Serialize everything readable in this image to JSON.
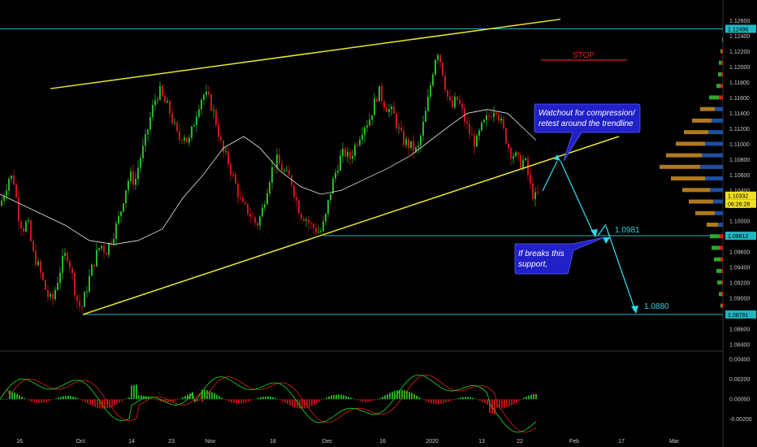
{
  "chart_data": [
    {
      "type": "candlestick",
      "title": "",
      "y_axis_ticks": [
        "1.12600",
        "1.12400",
        "1.12200",
        "1.12000",
        "1.11800",
        "1.11600",
        "1.11400",
        "1.11200",
        "1.11000",
        "1.10800",
        "1.10600",
        "1.10400",
        "1.10200",
        "1.10000",
        "1.09800",
        "1.09600",
        "1.09400",
        "1.09200",
        "1.09000",
        "1.08800",
        "1.08600",
        "1.08400"
      ],
      "ylim": [
        1.084,
        1.1268
      ],
      "x_axis_ticks": [
        "16",
        "Oct",
        "14",
        "23",
        "Nov",
        "18",
        "Dec",
        "16",
        "2020",
        "13",
        "22",
        "Feb",
        "17",
        "Mar"
      ],
      "price_labels": {
        "resistance": "1.12496",
        "current": "1.10332",
        "countdown": "06:26:28",
        "support": "1.09812",
        "target": "1.08791"
      },
      "levels": [
        {
          "label": "1.0981",
          "value": 1.0981
        },
        {
          "label": "1.0880",
          "value": 1.088
        }
      ],
      "stop_label": "STOP",
      "annotations": [
        {
          "line1": "Watchout for compression/",
          "line2": "retest around the trendline"
        },
        {
          "line1": "If breaks this",
          "line2": "support,"
        }
      ],
      "close_path": [
        [
          0,
          1.102
        ],
        [
          6,
          1.104
        ],
        [
          12,
          1.106
        ],
        [
          18,
          1.105
        ],
        [
          22,
          1.101
        ],
        [
          28,
          1.099
        ],
        [
          34,
          1.1
        ],
        [
          40,
          1.096
        ],
        [
          46,
          1.0945
        ],
        [
          52,
          1.0925
        ],
        [
          58,
          1.0905
        ],
        [
          64,
          1.0895
        ],
        [
          70,
          1.092
        ],
        [
          76,
          1.0945
        ],
        [
          82,
          1.096
        ],
        [
          88,
          1.0935
        ],
        [
          94,
          1.09
        ],
        [
          100,
          1.0885
        ],
        [
          106,
          1.091
        ],
        [
          112,
          1.0935
        ],
        [
          118,
          1.0955
        ],
        [
          124,
          1.097
        ],
        [
          130,
          1.096
        ],
        [
          136,
          1.0975
        ],
        [
          142,
          1.099
        ],
        [
          148,
          1.101
        ],
        [
          154,
          1.104
        ],
        [
          160,
          1.106
        ],
        [
          166,
          1.105
        ],
        [
          172,
          1.108
        ],
        [
          178,
          1.11
        ],
        [
          184,
          1.113
        ],
        [
          190,
          1.1155
        ],
        [
          196,
          1.117
        ],
        [
          202,
          1.1155
        ],
        [
          208,
          1.1145
        ],
        [
          214,
          1.1125
        ],
        [
          220,
          1.1105
        ],
        [
          226,
          1.1115
        ],
        [
          232,
          1.11
        ],
        [
          238,
          1.1125
        ],
        [
          244,
          1.115
        ],
        [
          250,
          1.1165
        ],
        [
          256,
          1.116
        ],
        [
          262,
          1.1145
        ],
        [
          268,
          1.112
        ],
        [
          274,
          1.109
        ],
        [
          280,
          1.108
        ],
        [
          286,
          1.106
        ],
        [
          292,
          1.104
        ],
        [
          298,
          1.102
        ],
        [
          304,
          1.1015
        ],
        [
          310,
          1.1005
        ],
        [
          316,
          1.0995
        ],
        [
          322,
          1.101
        ],
        [
          328,
          1.104
        ],
        [
          334,
          1.1065
        ],
        [
          340,
          1.108
        ],
        [
          346,
          1.107
        ],
        [
          352,
          1.106
        ],
        [
          358,
          1.1055
        ],
        [
          364,
          1.103
        ],
        [
          370,
          1.101
        ],
        [
          376,
          1.1005
        ],
        [
          382,
          1.0995
        ],
        [
          388,
          1.099
        ],
        [
          394,
          1.0985
        ],
        [
          400,
          1.1
        ],
        [
          406,
          1.1035
        ],
        [
          412,
          1.106
        ],
        [
          418,
          1.108
        ],
        [
          424,
          1.109
        ],
        [
          430,
          1.108
        ],
        [
          436,
          1.1095
        ],
        [
          442,
          1.111
        ],
        [
          448,
          1.1125
        ],
        [
          454,
          1.113
        ],
        [
          460,
          1.115
        ],
        [
          466,
          1.117
        ],
        [
          472,
          1.1155
        ],
        [
          478,
          1.1145
        ],
        [
          484,
          1.114
        ],
        [
          490,
          1.112
        ],
        [
          496,
          1.1105
        ],
        [
          502,
          1.11
        ],
        [
          508,
          1.1095
        ],
        [
          514,
          1.109
        ],
        [
          520,
          1.112
        ],
        [
          526,
          1.115
        ],
        [
          532,
          1.119
        ],
        [
          538,
          1.1225
        ],
        [
          544,
          1.12
        ],
        [
          550,
          1.1165
        ],
        [
          556,
          1.1145
        ],
        [
          562,
          1.116
        ],
        [
          568,
          1.1145
        ],
        [
          574,
          1.1125
        ],
        [
          580,
          1.111
        ],
        [
          586,
          1.11
        ],
        [
          592,
          1.112
        ],
        [
          598,
          1.113
        ],
        [
          604,
          1.114
        ],
        [
          610,
          1.115
        ],
        [
          616,
          1.113
        ],
        [
          622,
          1.111
        ],
        [
          628,
          1.109
        ],
        [
          634,
          1.1085
        ],
        [
          640,
          1.1075
        ],
        [
          646,
          1.108
        ],
        [
          650,
          1.106
        ],
        [
          654,
          1.104
        ],
        [
          658,
          1.103
        ],
        [
          662,
          1.1033
        ]
      ],
      "ma_path": [
        [
          0,
          1.1035
        ],
        [
          40,
          1.1015
        ],
        [
          80,
          1.0995
        ],
        [
          110,
          1.0975
        ],
        [
          140,
          1.097
        ],
        [
          170,
          1.0975
        ],
        [
          200,
          1.099
        ],
        [
          225,
          1.103
        ],
        [
          250,
          1.106
        ],
        [
          275,
          1.1095
        ],
        [
          300,
          1.111
        ],
        [
          320,
          1.1095
        ],
        [
          345,
          1.1065
        ],
        [
          370,
          1.1045
        ],
        [
          395,
          1.1035
        ],
        [
          420,
          1.104
        ],
        [
          450,
          1.1055
        ],
        [
          480,
          1.107
        ],
        [
          505,
          1.1085
        ],
        [
          530,
          1.1105
        ],
        [
          555,
          1.1125
        ],
        [
          575,
          1.114
        ],
        [
          600,
          1.1145
        ],
        [
          625,
          1.114
        ],
        [
          645,
          1.112
        ],
        [
          660,
          1.1105
        ]
      ],
      "trend_lines": [
        {
          "name": "upper",
          "from": [
            62,
            1.1172
          ],
          "to": [
            690,
            1.1262
          ]
        },
        {
          "name": "lower",
          "from": [
            102,
            1.0879
          ],
          "to": [
            762,
            1.111
          ]
        }
      ],
      "volume_profile": [
        [
          1.1235,
          0,
          1
        ],
        [
          1.122,
          1,
          2
        ],
        [
          1.1205,
          2,
          3
        ],
        [
          1.119,
          2,
          4
        ],
        [
          1.1175,
          3,
          5
        ],
        [
          1.116,
          5,
          12
        ],
        [
          1.1145,
          10,
          18
        ],
        [
          1.113,
          14,
          24
        ],
        [
          1.1115,
          18,
          30
        ],
        [
          1.11,
          22,
          36
        ],
        [
          1.1085,
          26,
          44
        ],
        [
          1.107,
          28,
          50
        ],
        [
          1.1055,
          22,
          42
        ],
        [
          1.104,
          16,
          34
        ],
        [
          1.1025,
          12,
          30
        ],
        [
          1.101,
          10,
          24
        ],
        [
          1.0995,
          6,
          14
        ],
        [
          1.098,
          4,
          12
        ],
        [
          1.0965,
          4,
          10
        ],
        [
          1.095,
          3,
          8
        ],
        [
          1.0935,
          2,
          6
        ],
        [
          1.092,
          2,
          5
        ],
        [
          1.0905,
          1,
          4
        ],
        [
          1.089,
          1,
          2
        ]
      ]
    },
    {
      "type": "macd",
      "title": "",
      "y_axis_ticks": [
        "0.00400",
        "0.00200",
        "0.00000",
        "-0.00200"
      ],
      "ylim": [
        -0.003,
        0.0045
      ]
    }
  ]
}
